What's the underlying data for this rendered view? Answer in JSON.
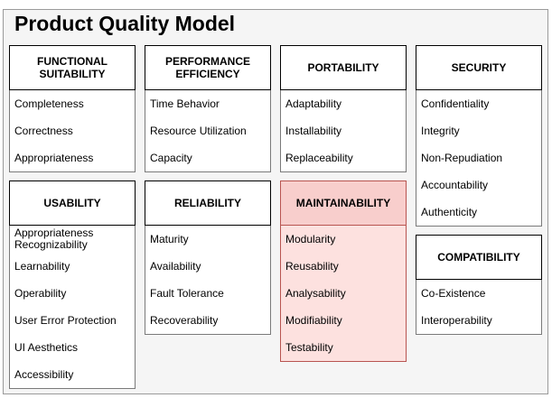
{
  "title": "Product Quality Model",
  "groups": {
    "functional": {
      "name": "FUNCTIONAL SUITABILITY",
      "items": [
        "Completeness",
        "Correctness",
        "Appropriateness"
      ]
    },
    "performance": {
      "name": "PERFORMANCE EFFICIENCY",
      "items": [
        "Time Behavior",
        "Resource Utilization",
        "Capacity"
      ]
    },
    "portability": {
      "name": "PORTABILITY",
      "items": [
        "Adaptability",
        "Installability",
        "Replaceability"
      ]
    },
    "security": {
      "name": "SECURITY",
      "items": [
        "Confidentiality",
        "Integrity",
        "Non-Repudiation",
        "Accountability",
        "Authenticity"
      ]
    },
    "usability": {
      "name": "USABILITY",
      "items": [
        "Appropriateness Recognizability",
        "Learnability",
        "Operability",
        "User Error Protection",
        "UI Aesthetics",
        "Accessibility"
      ]
    },
    "reliability": {
      "name": "RELIABILITY",
      "items": [
        "Maturity",
        "Availability",
        "Fault Tolerance",
        "Recoverability"
      ]
    },
    "maintainability": {
      "name": "MAINTAINABILITY",
      "items": [
        "Modularity",
        "Reusability",
        "Analysability",
        "Modifiability",
        "Testability"
      ]
    },
    "compatibility": {
      "name": "COMPATIBILITY",
      "items": [
        "Co-Existence",
        "Interoperability"
      ]
    }
  },
  "colors": {
    "highlight_header": "#f8cecc",
    "highlight_body": "#fde1df",
    "highlight_border": "#b85450"
  }
}
